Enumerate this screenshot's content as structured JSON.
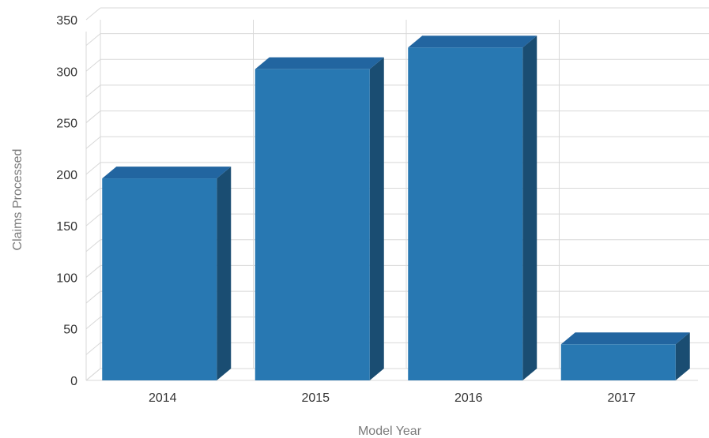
{
  "chart_data": {
    "type": "bar",
    "categories": [
      "2014",
      "2015",
      "2016",
      "2017"
    ],
    "values": [
      196,
      302,
      323,
      35
    ],
    "title": "",
    "xlabel": "Model Year",
    "ylabel": "Claims Processed",
    "ylim": [
      0,
      350
    ],
    "yticks": [
      0,
      50,
      100,
      150,
      200,
      250,
      300,
      350
    ],
    "grid": true,
    "legend": "none",
    "style": "3d-column",
    "colors": {
      "bar_front": "#2878b2",
      "bar_top": "#2265a0",
      "bar_side": "#1a4d72",
      "grid": "#d8d8d8",
      "axis_title": "#7a7a7a",
      "tick_text": "#333333"
    }
  }
}
